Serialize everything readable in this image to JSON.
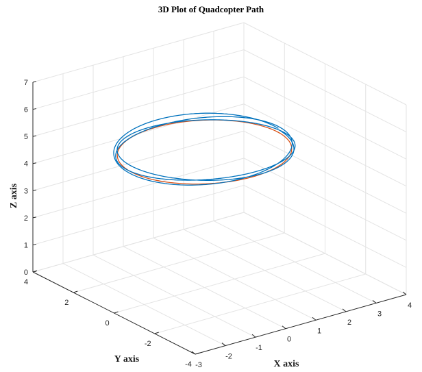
{
  "chart_data": {
    "type": "line3d",
    "title": "3D Plot of Quadcopter Path",
    "xlabel": "X axis",
    "ylabel": "Y axis",
    "zlabel": "Z axis",
    "xlim": [
      -3,
      4
    ],
    "ylim": [
      -4,
      4
    ],
    "zlim": [
      0,
      7
    ],
    "xticks": [
      -3,
      -2,
      -1,
      0,
      1,
      2,
      3,
      4
    ],
    "yticks": [
      -4,
      -2,
      0,
      2,
      4
    ],
    "zticks": [
      0,
      1,
      2,
      3,
      4,
      5,
      6,
      7
    ],
    "grid": true,
    "colors": {
      "reference": "#d95319",
      "actual": "#0072bd"
    },
    "series": [
      {
        "shape": "circle",
        "color_key": "reference",
        "radius": 2.4,
        "center": [
          0,
          0,
          5
        ],
        "z_amplitude": 0,
        "turns": 1
      },
      {
        "shape": "circle",
        "color_key": "actual",
        "radius": 2.45,
        "center": [
          0,
          0,
          5.1
        ],
        "z_amplitude": 0.12,
        "turns": 3
      }
    ]
  }
}
